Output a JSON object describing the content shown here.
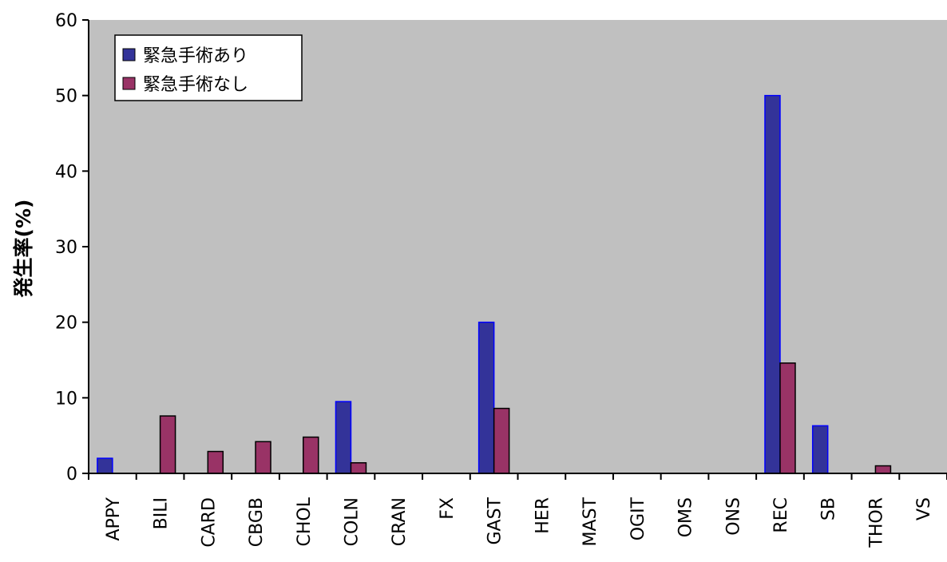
{
  "chart_data": {
    "type": "bar",
    "title": "",
    "xlabel": "",
    "ylabel": "発生率(%)",
    "ylim": [
      0,
      60
    ],
    "yticks": [
      "0",
      "10",
      "20",
      "30",
      "40",
      "50",
      "60"
    ],
    "categories": [
      "APPY",
      "BILI",
      "CARD",
      "CBGB",
      "CHOL",
      "COLN",
      "CRAN",
      "FX",
      "GAST",
      "HER",
      "MAST",
      "OGIT",
      "OMS",
      "ONS",
      "REC",
      "SB",
      "THOR",
      "VS"
    ],
    "series": [
      {
        "name": "緊急手術あり",
        "color": "#333399",
        "values": [
          2,
          0,
          0,
          0,
          0,
          9.5,
          0,
          0,
          20,
          0,
          0,
          0,
          0,
          0,
          50,
          6.3,
          0,
          0
        ]
      },
      {
        "name": "緊急手術なし",
        "color": "#993366",
        "values": [
          0,
          7.6,
          2.9,
          4.2,
          4.8,
          1.4,
          0,
          0,
          8.6,
          0,
          0,
          0,
          0,
          0,
          14.6,
          0,
          1,
          0
        ]
      }
    ],
    "legend_position": "top-left",
    "plot_background": "#c0c0c0",
    "gridlines": false
  }
}
